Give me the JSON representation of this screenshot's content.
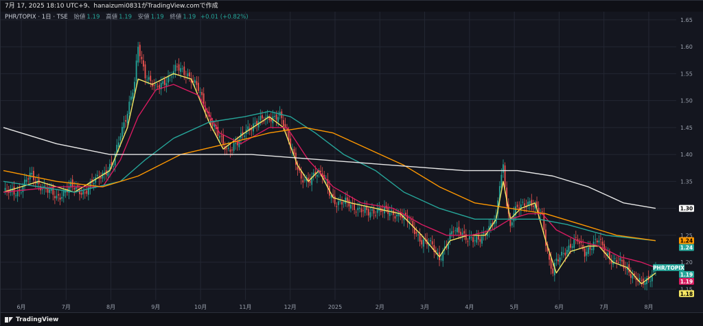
{
  "header": {
    "title": "7月 17, 2025 18:10 UTC+9、hanaizumi0831がTradingView.comで作成"
  },
  "symbol": {
    "name": "PHR/TOPIX · 1日 · TSE",
    "open_label": "始値",
    "open": "1.19",
    "high_label": "高値",
    "high": "1.19",
    "low_label": "安値",
    "low": "1.19",
    "close_label": "終値",
    "close": "1.19",
    "change": "+0.01 (+0.82%)"
  },
  "footer": {
    "brand": "TradingView"
  },
  "colors": {
    "background": "#14161f",
    "grid": "#232733",
    "up": "#26a69a",
    "down": "#ef5350",
    "ma_yellow": "#f5e663",
    "ma_crimson": "#d81b60",
    "ma_teal": "#26a69a",
    "ma_orange": "#ff9800",
    "ma_white": "#e8e8e8",
    "price_tag": "#26a69a"
  },
  "chart_data": {
    "type": "line",
    "subtype": "candlestick with moving averages",
    "y_axis": {
      "ticks": [
        "1.65",
        "1.60",
        "1.55",
        "1.50",
        "1.45",
        "1.40",
        "1.35",
        "1.30",
        "1.25",
        "1.20",
        "1.15"
      ],
      "range": [
        1.13,
        1.66
      ],
      "position": "right"
    },
    "x_axis": {
      "labels": [
        "6月",
        "7月",
        "8月",
        "9月",
        "10月",
        "11月",
        "12月",
        "2025",
        "2月",
        "3月",
        "4月",
        "5月",
        "6月",
        "7月",
        "8月"
      ]
    },
    "grid": true,
    "price_tags": [
      {
        "text": "1.30",
        "value": 1.3,
        "color": "#ffffff",
        "text_color": "#000000"
      },
      {
        "text": "1.24",
        "value": 1.24,
        "color": "#ff9800",
        "text_color": "#000000"
      },
      {
        "text": "1.24",
        "value": 1.24,
        "color": "#26a69a",
        "text_color": "#ffffff"
      },
      {
        "text": "PHR/TOPIX",
        "value": 1.19,
        "color": "#26a69a",
        "text_color": "#ffffff"
      },
      {
        "text": "1.19",
        "value": 1.19,
        "color": "#26a69a",
        "text_color": "#ffffff"
      },
      {
        "text": "1.19",
        "value": 1.19,
        "color": "#d81b60",
        "text_color": "#ffffff"
      },
      {
        "text": "1.18",
        "value": 1.18,
        "color": "#f5e663",
        "text_color": "#000000"
      }
    ],
    "price_anchors": [
      [
        0,
        1.33
      ],
      [
        8,
        1.33
      ],
      [
        15,
        1.36
      ],
      [
        22,
        1.34
      ],
      [
        30,
        1.32
      ],
      [
        38,
        1.34
      ],
      [
        46,
        1.33
      ],
      [
        54,
        1.36
      ],
      [
        62,
        1.38
      ],
      [
        66,
        1.44
      ],
      [
        70,
        1.48
      ],
      [
        74,
        1.53
      ],
      [
        76,
        1.6
      ],
      [
        80,
        1.55
      ],
      [
        86,
        1.52
      ],
      [
        92,
        1.54
      ],
      [
        98,
        1.56
      ],
      [
        104,
        1.55
      ],
      [
        110,
        1.52
      ],
      [
        116,
        1.47
      ],
      [
        122,
        1.43
      ],
      [
        126,
        1.41
      ],
      [
        132,
        1.42
      ],
      [
        138,
        1.45
      ],
      [
        144,
        1.46
      ],
      [
        150,
        1.47
      ],
      [
        156,
        1.47
      ],
      [
        160,
        1.44
      ],
      [
        164,
        1.4
      ],
      [
        168,
        1.35
      ],
      [
        172,
        1.35
      ],
      [
        176,
        1.37
      ],
      [
        180,
        1.36
      ],
      [
        184,
        1.33
      ],
      [
        188,
        1.31
      ],
      [
        194,
        1.31
      ],
      [
        200,
        1.3
      ],
      [
        206,
        1.29
      ],
      [
        212,
        1.3
      ],
      [
        218,
        1.29
      ],
      [
        224,
        1.29
      ],
      [
        230,
        1.27
      ],
      [
        236,
        1.24
      ],
      [
        242,
        1.23
      ],
      [
        246,
        1.21
      ],
      [
        250,
        1.23
      ],
      [
        254,
        1.26
      ],
      [
        258,
        1.26
      ],
      [
        262,
        1.24
      ],
      [
        266,
        1.24
      ],
      [
        270,
        1.25
      ],
      [
        274,
        1.26
      ],
      [
        278,
        1.28
      ],
      [
        280,
        1.35
      ],
      [
        282,
        1.38
      ],
      [
        284,
        1.31
      ],
      [
        286,
        1.26
      ],
      [
        288,
        1.29
      ],
      [
        292,
        1.31
      ],
      [
        296,
        1.31
      ],
      [
        300,
        1.3
      ],
      [
        304,
        1.29
      ],
      [
        306,
        1.24
      ],
      [
        308,
        1.2
      ],
      [
        310,
        1.18
      ],
      [
        312,
        1.2
      ],
      [
        316,
        1.22
      ],
      [
        320,
        1.23
      ],
      [
        324,
        1.24
      ],
      [
        328,
        1.22
      ],
      [
        332,
        1.23
      ],
      [
        336,
        1.24
      ],
      [
        340,
        1.22
      ],
      [
        344,
        1.2
      ],
      [
        348,
        1.2
      ],
      [
        352,
        1.19
      ],
      [
        356,
        1.17
      ],
      [
        360,
        1.16
      ],
      [
        364,
        1.17
      ],
      [
        368,
        1.19
      ]
    ],
    "moving_averages": [
      {
        "color": "#f5e663",
        "points": [
          [
            0,
            1.33
          ],
          [
            20,
            1.35
          ],
          [
            40,
            1.33
          ],
          [
            60,
            1.37
          ],
          [
            70,
            1.45
          ],
          [
            76,
            1.54
          ],
          [
            84,
            1.53
          ],
          [
            96,
            1.55
          ],
          [
            106,
            1.54
          ],
          [
            116,
            1.46
          ],
          [
            124,
            1.41
          ],
          [
            136,
            1.44
          ],
          [
            150,
            1.47
          ],
          [
            158,
            1.45
          ],
          [
            166,
            1.38
          ],
          [
            172,
            1.35
          ],
          [
            178,
            1.37
          ],
          [
            186,
            1.32
          ],
          [
            196,
            1.31
          ],
          [
            210,
            1.3
          ],
          [
            224,
            1.29
          ],
          [
            236,
            1.25
          ],
          [
            246,
            1.21
          ],
          [
            252,
            1.24
          ],
          [
            262,
            1.25
          ],
          [
            272,
            1.25
          ],
          [
            278,
            1.28
          ],
          [
            282,
            1.35
          ],
          [
            286,
            1.28
          ],
          [
            292,
            1.3
          ],
          [
            300,
            1.31
          ],
          [
            306,
            1.24
          ],
          [
            312,
            1.18
          ],
          [
            320,
            1.22
          ],
          [
            330,
            1.23
          ],
          [
            336,
            1.23
          ],
          [
            344,
            1.2
          ],
          [
            352,
            1.19
          ],
          [
            360,
            1.16
          ],
          [
            368,
            1.18
          ]
        ]
      },
      {
        "color": "#d81b60",
        "points": [
          [
            0,
            1.33
          ],
          [
            30,
            1.34
          ],
          [
            56,
            1.34
          ],
          [
            66,
            1.39
          ],
          [
            76,
            1.47
          ],
          [
            86,
            1.52
          ],
          [
            96,
            1.53
          ],
          [
            110,
            1.51
          ],
          [
            122,
            1.44
          ],
          [
            134,
            1.42
          ],
          [
            150,
            1.45
          ],
          [
            160,
            1.45
          ],
          [
            172,
            1.39
          ],
          [
            186,
            1.34
          ],
          [
            202,
            1.31
          ],
          [
            220,
            1.3
          ],
          [
            236,
            1.27
          ],
          [
            250,
            1.25
          ],
          [
            264,
            1.25
          ],
          [
            276,
            1.26
          ],
          [
            286,
            1.28
          ],
          [
            296,
            1.29
          ],
          [
            304,
            1.29
          ],
          [
            312,
            1.26
          ],
          [
            324,
            1.24
          ],
          [
            336,
            1.23
          ],
          [
            348,
            1.21
          ],
          [
            360,
            1.2
          ],
          [
            368,
            1.19
          ]
        ]
      },
      {
        "color": "#26a69a",
        "points": [
          [
            0,
            1.35
          ],
          [
            40,
            1.33
          ],
          [
            66,
            1.35
          ],
          [
            80,
            1.39
          ],
          [
            96,
            1.43
          ],
          [
            116,
            1.46
          ],
          [
            136,
            1.47
          ],
          [
            150,
            1.48
          ],
          [
            162,
            1.47
          ],
          [
            176,
            1.44
          ],
          [
            192,
            1.4
          ],
          [
            210,
            1.37
          ],
          [
            226,
            1.33
          ],
          [
            246,
            1.3
          ],
          [
            266,
            1.28
          ],
          [
            286,
            1.28
          ],
          [
            302,
            1.28
          ],
          [
            318,
            1.27
          ],
          [
            340,
            1.25
          ],
          [
            368,
            1.24
          ]
        ]
      },
      {
        "color": "#ff9800",
        "points": [
          [
            0,
            1.37
          ],
          [
            30,
            1.35
          ],
          [
            56,
            1.34
          ],
          [
            76,
            1.36
          ],
          [
            100,
            1.4
          ],
          [
            126,
            1.42
          ],
          [
            150,
            1.44
          ],
          [
            170,
            1.45
          ],
          [
            186,
            1.44
          ],
          [
            206,
            1.41
          ],
          [
            226,
            1.38
          ],
          [
            246,
            1.34
          ],
          [
            266,
            1.31
          ],
          [
            286,
            1.3
          ],
          [
            306,
            1.29
          ],
          [
            326,
            1.27
          ],
          [
            346,
            1.25
          ],
          [
            368,
            1.24
          ]
        ]
      },
      {
        "color": "#e8e8e8",
        "points": [
          [
            0,
            1.45
          ],
          [
            30,
            1.42
          ],
          [
            60,
            1.4
          ],
          [
            100,
            1.4
          ],
          [
            140,
            1.4
          ],
          [
            180,
            1.39
          ],
          [
            220,
            1.38
          ],
          [
            260,
            1.37
          ],
          [
            290,
            1.37
          ],
          [
            310,
            1.36
          ],
          [
            330,
            1.34
          ],
          [
            350,
            1.31
          ],
          [
            368,
            1.3
          ]
        ]
      }
    ]
  }
}
